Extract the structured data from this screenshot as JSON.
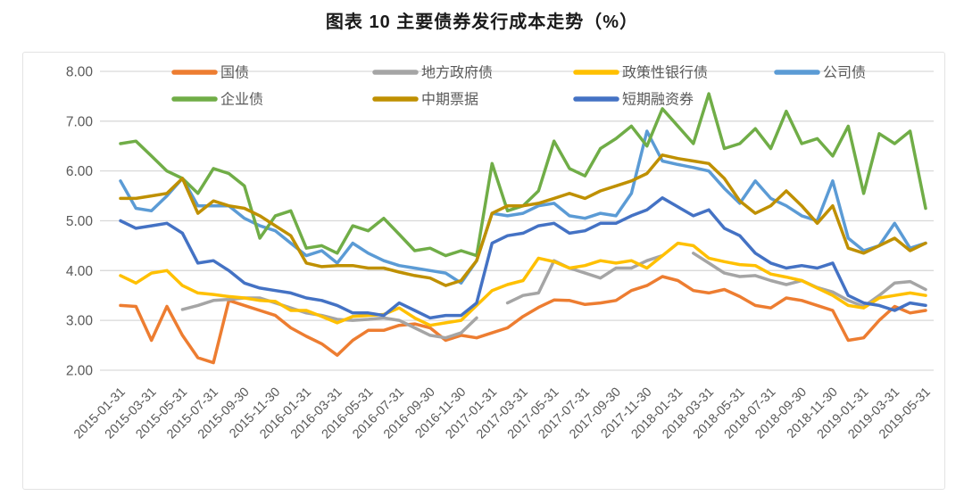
{
  "title": "图表 10 主要债券发行成本走势（%）",
  "chart_data": {
    "type": "line",
    "title": "图表 10 主要债券发行成本走势（%）",
    "ylabel": "",
    "xlabel": "",
    "ylim": [
      2.0,
      8.0
    ],
    "grid": "horizontal-only",
    "legend_position": "top-inside, two rows",
    "y_tick_labels": [
      "8.00",
      "7.00",
      "6.00",
      "5.00",
      "4.00",
      "3.00",
      "2.00"
    ],
    "x_tick_labels": [
      "2015-01-31",
      "2015-03-31",
      "2015-05-31",
      "2015-07-31",
      "2015-09-30",
      "2015-11-30",
      "2016-01-31",
      "2016-03-31",
      "2016-05-31",
      "2016-07-31",
      "2016-09-30",
      "2016-11-30",
      "2017-01-31",
      "2017-03-31",
      "2017-05-31",
      "2017-07-31",
      "2017-09-30",
      "2017-11-30",
      "2018-01-31",
      "2018-03-31",
      "2018-05-31",
      "2018-07-31",
      "2018-09-30",
      "2018-11-30",
      "2019-01-31",
      "2019-03-31",
      "2019-05-31"
    ],
    "x_note": "data is monthly (53 points, 2015-01 to 2019-05); axis labels shown every 2nd month; null = month with no issuance (gap in line)",
    "series": [
      {
        "name": "国债",
        "color": "#ED7D31",
        "values": [
          3.3,
          3.28,
          2.6,
          3.28,
          2.7,
          2.25,
          2.15,
          3.4,
          3.3,
          3.2,
          3.1,
          2.85,
          2.68,
          2.53,
          2.3,
          2.6,
          2.8,
          2.8,
          2.9,
          2.93,
          2.85,
          2.6,
          2.7,
          2.65,
          2.75,
          2.85,
          3.08,
          3.26,
          3.41,
          3.4,
          3.32,
          3.35,
          3.4,
          3.6,
          3.7,
          3.88,
          3.8,
          3.6,
          3.55,
          3.62,
          3.48,
          3.3,
          3.25,
          3.45,
          3.4,
          3.3,
          3.2,
          2.6,
          2.65,
          3.0,
          3.28,
          3.15,
          3.2
        ]
      },
      {
        "name": "地方政府债",
        "color": "#A5A5A5",
        "values": [
          null,
          null,
          null,
          null,
          3.22,
          3.3,
          3.4,
          3.42,
          3.45,
          3.45,
          3.35,
          3.25,
          3.15,
          3.1,
          3.02,
          3.0,
          3.02,
          3.05,
          3.0,
          2.85,
          2.7,
          2.65,
          2.75,
          3.05,
          null,
          3.35,
          3.5,
          3.55,
          4.2,
          4.05,
          3.95,
          3.85,
          4.05,
          4.05,
          4.2,
          4.3,
          null,
          4.35,
          4.15,
          3.95,
          3.88,
          3.9,
          3.8,
          3.72,
          3.8,
          3.66,
          3.57,
          3.4,
          3.28,
          3.5,
          3.75,
          3.78,
          3.62
        ]
      },
      {
        "name": "政策性银行债",
        "color": "#FFC000",
        "values": [
          3.9,
          3.75,
          3.95,
          4.0,
          3.7,
          3.55,
          3.52,
          3.48,
          3.45,
          3.4,
          3.38,
          3.2,
          3.2,
          3.08,
          2.95,
          3.08,
          3.1,
          3.12,
          3.25,
          3.05,
          2.9,
          2.95,
          3.0,
          3.3,
          3.6,
          3.72,
          3.8,
          4.25,
          4.18,
          4.05,
          4.1,
          4.2,
          4.15,
          4.2,
          4.05,
          4.3,
          4.55,
          4.5,
          4.25,
          4.18,
          4.12,
          4.1,
          3.93,
          3.87,
          3.8,
          3.65,
          3.5,
          3.3,
          3.25,
          3.45,
          3.5,
          3.55,
          3.5
        ]
      },
      {
        "name": "公司债",
        "color": "#5B9BD5",
        "values": [
          5.8,
          5.25,
          5.2,
          5.5,
          5.85,
          5.3,
          5.3,
          5.3,
          5.05,
          4.9,
          4.8,
          4.55,
          4.3,
          4.4,
          4.15,
          4.55,
          4.35,
          4.2,
          4.1,
          4.05,
          4.0,
          3.95,
          3.75,
          4.2,
          5.15,
          5.1,
          5.15,
          5.3,
          5.35,
          5.1,
          5.05,
          5.15,
          5.1,
          5.55,
          6.8,
          6.2,
          6.13,
          6.07,
          6.0,
          5.65,
          5.35,
          5.8,
          5.45,
          5.3,
          5.1,
          5.0,
          5.8,
          4.65,
          4.4,
          4.5,
          4.95,
          4.45,
          4.55
        ]
      },
      {
        "name": "企业债",
        "color": "#70AD47",
        "values": [
          6.55,
          6.6,
          6.3,
          6.0,
          5.85,
          5.55,
          6.05,
          5.95,
          5.7,
          4.65,
          5.1,
          5.2,
          4.45,
          4.5,
          4.35,
          4.9,
          4.8,
          5.05,
          4.73,
          4.4,
          4.45,
          4.3,
          4.4,
          4.3,
          6.15,
          5.2,
          5.3,
          5.6,
          6.6,
          6.05,
          5.9,
          6.45,
          6.65,
          6.9,
          6.5,
          7.25,
          6.9,
          6.55,
          7.55,
          6.45,
          6.55,
          6.85,
          6.45,
          7.2,
          6.55,
          6.65,
          6.3,
          6.9,
          5.55,
          6.75,
          6.55,
          6.8,
          5.25
        ]
      },
      {
        "name": "中期票据",
        "color": "#BF9000",
        "values": [
          5.45,
          5.45,
          5.5,
          5.55,
          5.85,
          5.15,
          5.4,
          5.3,
          5.25,
          5.1,
          4.9,
          4.7,
          4.15,
          4.08,
          4.1,
          4.1,
          4.05,
          4.05,
          3.97,
          3.9,
          3.85,
          3.7,
          3.8,
          4.2,
          5.15,
          5.3,
          5.3,
          5.35,
          5.45,
          5.55,
          5.45,
          5.6,
          5.7,
          5.8,
          5.95,
          6.32,
          6.25,
          6.2,
          6.15,
          5.85,
          5.4,
          5.15,
          5.3,
          5.6,
          5.3,
          4.95,
          5.3,
          4.45,
          4.35,
          4.5,
          4.65,
          4.4,
          4.55
        ]
      },
      {
        "name": "短期融资券",
        "color": "#4472C4",
        "values": [
          5.0,
          4.85,
          4.9,
          4.95,
          4.75,
          4.15,
          4.2,
          4.0,
          3.75,
          3.65,
          3.6,
          3.55,
          3.45,
          3.4,
          3.3,
          3.15,
          3.15,
          3.1,
          3.35,
          3.2,
          3.05,
          3.1,
          3.1,
          3.35,
          4.55,
          4.7,
          4.75,
          4.9,
          4.95,
          4.75,
          4.8,
          4.95,
          4.95,
          5.1,
          5.22,
          5.46,
          5.28,
          5.1,
          5.22,
          4.85,
          4.7,
          4.35,
          4.15,
          4.05,
          4.1,
          4.05,
          4.15,
          3.5,
          3.35,
          3.3,
          3.2,
          3.35,
          3.3
        ]
      }
    ],
    "style": {
      "grid_color": "#D9D9D9",
      "axis_text_color": "#595959",
      "line_width": 3.5
    }
  }
}
